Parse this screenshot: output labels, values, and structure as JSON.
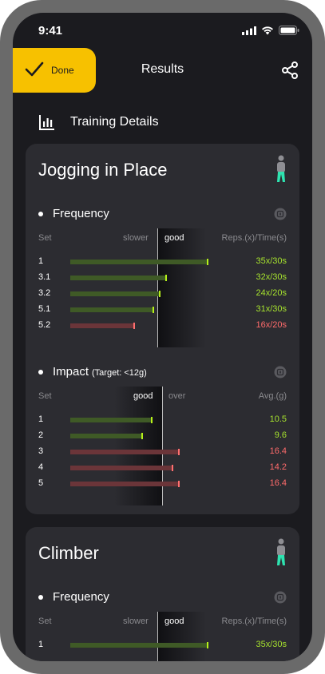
{
  "status": {
    "time": "9:41"
  },
  "nav": {
    "done_label": "Done",
    "title": "Results"
  },
  "section": {
    "title": "Training Details"
  },
  "colors": {
    "accent": "#f7c100",
    "good": "#a6e22e",
    "bad": "#ff6b6b",
    "figure": "#2ee3b0"
  },
  "cards": [
    {
      "title": "Jogging in Place",
      "metrics": [
        {
          "name": "Frequency",
          "target": "",
          "headers": {
            "label": "Set",
            "left": "slower",
            "good": "good",
            "right": "",
            "value": "Reps.(x)/Time(s)"
          },
          "rows": [
            {
              "label": "1",
              "level": 0.86,
              "status": "good",
              "value": "35x/30s"
            },
            {
              "label": "3.1",
              "level": 0.6,
              "status": "good",
              "value": "32x/30s"
            },
            {
              "label": "3.2",
              "level": 0.56,
              "status": "good",
              "value": "24x/20s"
            },
            {
              "label": "5.1",
              "level": 0.52,
              "status": "good",
              "value": "31x/30s"
            },
            {
              "label": "5.2",
              "level": 0.4,
              "status": "bad",
              "value": "16x/20s"
            }
          ]
        },
        {
          "name": "Impact",
          "target": "(Target: <12g)",
          "headers": {
            "label": "Set",
            "left": "",
            "good": "good",
            "right": "over",
            "value": "Avg.(g)"
          },
          "rows": [
            {
              "label": "1",
              "level": 0.51,
              "status": "good",
              "value": "10.5"
            },
            {
              "label": "2",
              "level": 0.45,
              "status": "good",
              "value": "9.6"
            },
            {
              "label": "3",
              "level": 0.68,
              "status": "bad",
              "value": "16.4"
            },
            {
              "label": "4",
              "level": 0.64,
              "status": "bad",
              "value": "14.2"
            },
            {
              "label": "5",
              "level": 0.68,
              "status": "bad",
              "value": "16.4"
            }
          ]
        }
      ]
    },
    {
      "title": "Climber",
      "metrics": [
        {
          "name": "Frequency",
          "target": "",
          "headers": {
            "label": "Set",
            "left": "slower",
            "good": "good",
            "right": "",
            "value": "Reps.(x)/Time(s)"
          },
          "rows": [
            {
              "label": "1",
              "level": 0.86,
              "status": "good",
              "value": "35x/30s"
            }
          ]
        }
      ]
    }
  ]
}
